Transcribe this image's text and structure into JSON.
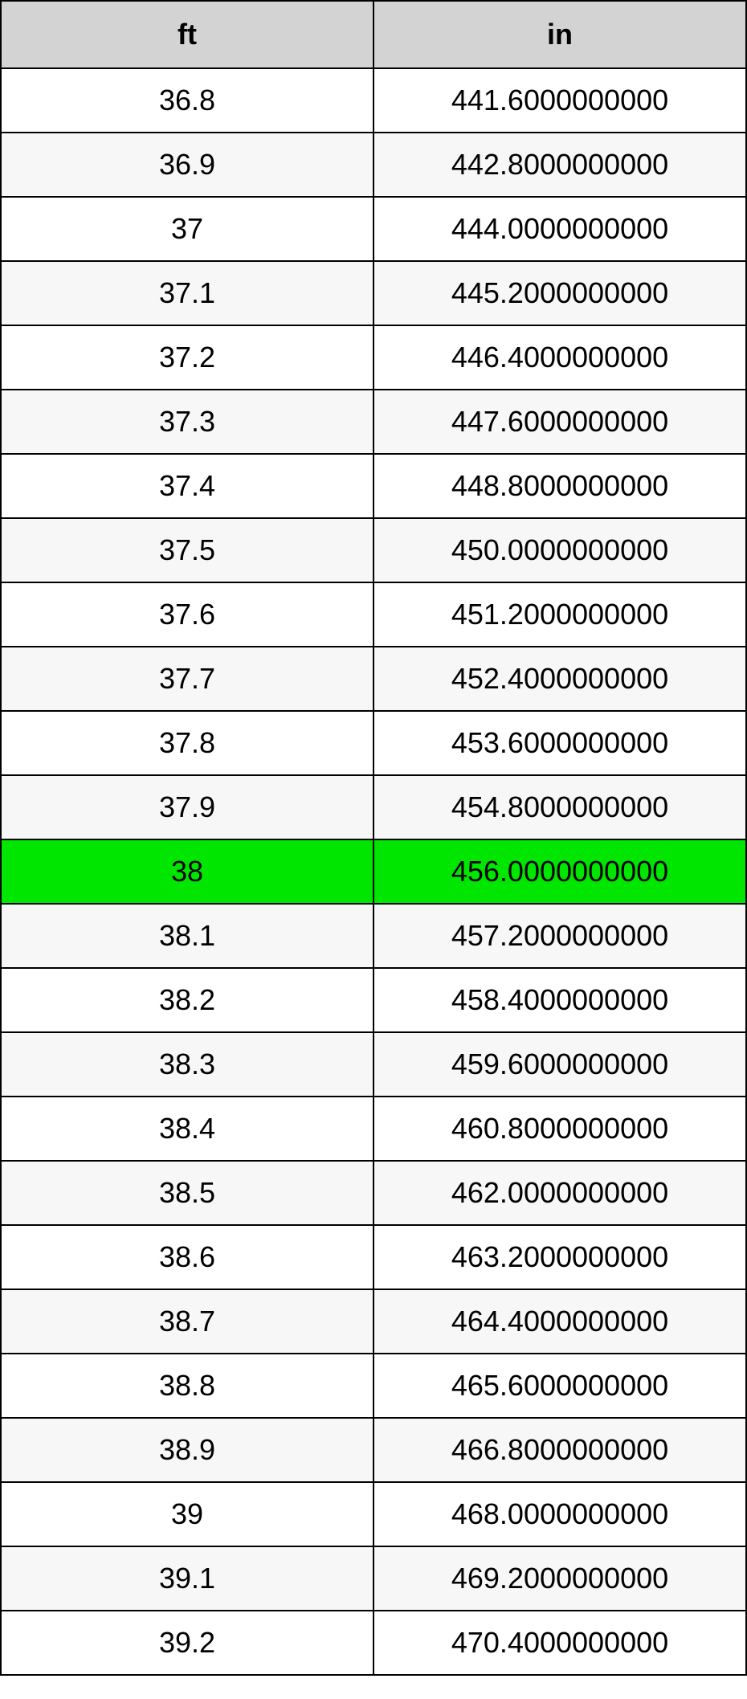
{
  "table": {
    "type": "table",
    "columns": [
      "ft",
      "in"
    ],
    "header_bg": "#d3d3d3",
    "header_fontsize": 36,
    "header_fontweight": "bold",
    "cell_fontsize": 36,
    "border_color": "#000000",
    "border_width": 2,
    "row_bg_odd": "#ffffff",
    "row_bg_even": "#f7f7f7",
    "highlight_bg": "#00e600",
    "text_color": "#000000",
    "column_alignment": [
      "center",
      "center"
    ],
    "highlight_row_index": 12,
    "rows": [
      [
        "36.8",
        "441.6000000000"
      ],
      [
        "36.9",
        "442.8000000000"
      ],
      [
        "37",
        "444.0000000000"
      ],
      [
        "37.1",
        "445.2000000000"
      ],
      [
        "37.2",
        "446.4000000000"
      ],
      [
        "37.3",
        "447.6000000000"
      ],
      [
        "37.4",
        "448.8000000000"
      ],
      [
        "37.5",
        "450.0000000000"
      ],
      [
        "37.6",
        "451.2000000000"
      ],
      [
        "37.7",
        "452.4000000000"
      ],
      [
        "37.8",
        "453.6000000000"
      ],
      [
        "37.9",
        "454.8000000000"
      ],
      [
        "38",
        "456.0000000000"
      ],
      [
        "38.1",
        "457.2000000000"
      ],
      [
        "38.2",
        "458.4000000000"
      ],
      [
        "38.3",
        "459.6000000000"
      ],
      [
        "38.4",
        "460.8000000000"
      ],
      [
        "38.5",
        "462.0000000000"
      ],
      [
        "38.6",
        "463.2000000000"
      ],
      [
        "38.7",
        "464.4000000000"
      ],
      [
        "38.8",
        "465.6000000000"
      ],
      [
        "38.9",
        "466.8000000000"
      ],
      [
        "39",
        "468.0000000000"
      ],
      [
        "39.1",
        "469.2000000000"
      ],
      [
        "39.2",
        "470.4000000000"
      ]
    ]
  }
}
